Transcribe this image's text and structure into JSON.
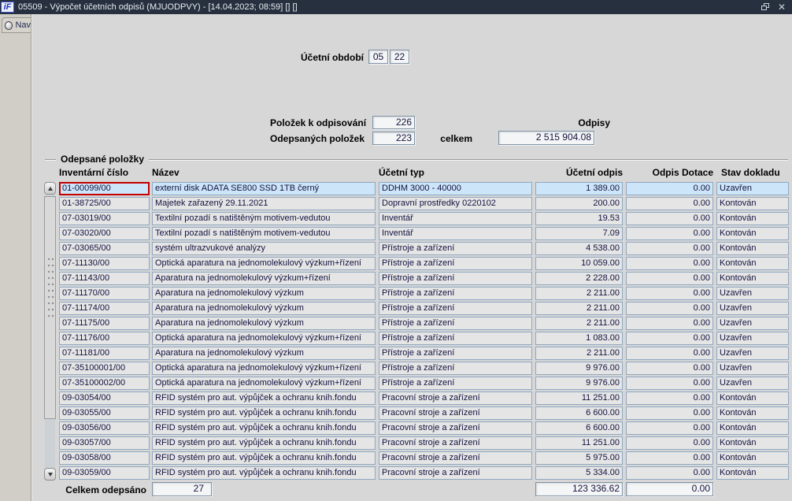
{
  "window": {
    "title": "05509 - Výpočet účetních odpisů (MJUODPVY) - [14.04.2023; 08:59]  []  []"
  },
  "icons": {
    "app_logo": "iF",
    "close": "✕",
    "restore": "two-overlapping-windows",
    "nav_bullet": "radio-dot",
    "scroll_up": "triangle-up",
    "scroll_down": "triangle-down"
  },
  "sidebar": {
    "nav_tab_label": "Nav"
  },
  "form": {
    "period_label": "Účetní období",
    "period_month": "05",
    "period_year": "22",
    "items_to_depreciate_label": "Položek k odpisování",
    "items_to_depreciate": "226",
    "depreciated_items_label": "Odepsaných položek",
    "depreciated_items": "223",
    "odpisy_label": "Odpisy",
    "celkem_label": "celkem",
    "odpisy_total": "2 515 904.08"
  },
  "table": {
    "group_label": "Odepsané položky",
    "columns": [
      "Inventární číslo",
      "Název",
      "Účetní typ",
      "Účetní odpis",
      "Odpis Dotace",
      "Stav dokladu"
    ],
    "selected_row_index": 0,
    "rows": [
      [
        "01-00099/00",
        "externí disk ADATA SE800 SSD 1TB černý",
        "DDHM 3000 - 40000",
        "1 389.00",
        "0.00",
        "Uzavřen"
      ],
      [
        "01-38725/00",
        "Majetek zařazený 29.11.2021",
        "Dopravní prostředky 0220102",
        "200.00",
        "0.00",
        "Kontován"
      ],
      [
        "07-03019/00",
        "Textilní pozadí s natištěným motivem-vedutou",
        "Inventář",
        "19.53",
        "0.00",
        "Kontován"
      ],
      [
        "07-03020/00",
        "Textilní pozadí s natištěným motivem-vedutou",
        "Inventář",
        "7.09",
        "0.00",
        "Kontován"
      ],
      [
        "07-03065/00",
        "systém ultrazvukové analýzy",
        "Přístroje a zařízení",
        "4 538.00",
        "0.00",
        "Kontován"
      ],
      [
        "07-11130/00",
        "Optická aparatura na jednomolekulový výzkum+řízení",
        "Přístroje a zařízení",
        "10 059.00",
        "0.00",
        "Kontován"
      ],
      [
        "07-11143/00",
        "Aparatura na jednomolekulový výzkum+řízení",
        "Přístroje a zařízení",
        "2 228.00",
        "0.00",
        "Kontován"
      ],
      [
        "07-11170/00",
        "Aparatura na jednomolekulový výzkum",
        "Přístroje a zařízení",
        "2 211.00",
        "0.00",
        "Uzavřen"
      ],
      [
        "07-11174/00",
        "Aparatura na jednomolekulový výzkum",
        "Přístroje a zařízení",
        "2 211.00",
        "0.00",
        "Uzavřen"
      ],
      [
        "07-11175/00",
        "Aparatura na jednomolekulový výzkum",
        "Přístroje a zařízení",
        "2 211.00",
        "0.00",
        "Uzavřen"
      ],
      [
        "07-11176/00",
        "Optická aparatura na jednomolekulový výzkum+řízení",
        "Přístroje a zařízení",
        "1 083.00",
        "0.00",
        "Uzavřen"
      ],
      [
        "07-11181/00",
        "Aparatura na jednomolekulový výzkum",
        "Přístroje a zařízení",
        "2 211.00",
        "0.00",
        "Uzavřen"
      ],
      [
        "07-35100001/00",
        "Optická aparatura na jednomolekulový výzkum+řízení",
        "Přístroje a zařízení",
        "9 976.00",
        "0.00",
        "Uzavřen"
      ],
      [
        "07-35100002/00",
        "Optická aparatura na jednomolekulový výzkum+řízení",
        "Přístroje a zařízení",
        "9 976.00",
        "0.00",
        "Uzavřen"
      ],
      [
        "09-03054/00",
        "RFID systém pro aut. výpůjček a ochranu knih.fondu",
        "Pracovní stroje a zařízení",
        "11 251.00",
        "0.00",
        "Kontován"
      ],
      [
        "09-03055/00",
        "RFID systém pro aut. výpůjček a ochranu knih.fondu",
        "Pracovní stroje a zařízení",
        "6 600.00",
        "0.00",
        "Kontován"
      ],
      [
        "09-03056/00",
        "RFID systém pro aut. výpůjček a ochranu knih.fondu",
        "Pracovní stroje a zařízení",
        "6 600.00",
        "0.00",
        "Kontován"
      ],
      [
        "09-03057/00",
        "RFID systém pro aut. výpůjček a ochranu knih.fondu",
        "Pracovní stroje a zařízení",
        "11 251.00",
        "0.00",
        "Kontován"
      ],
      [
        "09-03058/00",
        "RFID systém pro aut. výpůjček a ochranu knih.fondu",
        "Pracovní stroje a zařízení",
        "5 975.00",
        "0.00",
        "Kontován"
      ],
      [
        "09-03059/00",
        "RFID systém pro aut. výpůjček a ochranu knih.fondu",
        "Pracovní stroje a zařízení",
        "5 334.00",
        "0.00",
        "Kontován"
      ]
    ]
  },
  "footer": {
    "total_label": "Celkem odepsáno",
    "total_count": "27",
    "total_odpis": "123 336.62",
    "total_dotace": "0.00"
  },
  "colors": {
    "titlebar": "#26303f",
    "selection": "#cde5f8",
    "focus_border": "#c40000",
    "cell_border": "#8fa7c0"
  }
}
